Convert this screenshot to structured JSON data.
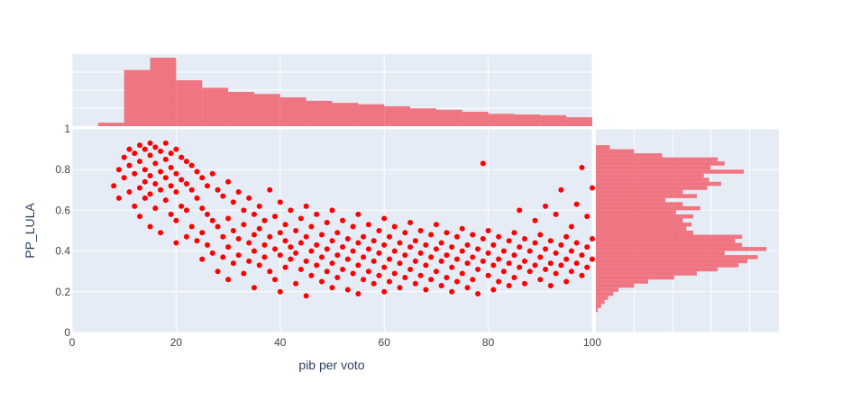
{
  "colors": {
    "background": "#ffffff",
    "plot_background": "#e5ecf6",
    "grid": "#ffffff",
    "scatter_marker": "#ff0000",
    "histogram_fill": "#f0606c",
    "tick_text": "#444444",
    "axis_title_text": "#2a3f5f"
  },
  "chart_data": {
    "type": "scatter",
    "title": "",
    "xlabel": "pib per voto",
    "ylabel": "PP_LULA",
    "xlim": [
      0,
      100
    ],
    "ylim": [
      0,
      1
    ],
    "x_ticks": [
      "0",
      "20",
      "40",
      "60",
      "80",
      "100"
    ],
    "y_ticks": [
      "0",
      "0.2",
      "0.4",
      "0.6",
      "0.8",
      "1"
    ],
    "grid": true,
    "marginal_x": {
      "type": "histogram",
      "bin_width": 5,
      "bin_starts": [
        5,
        10,
        15,
        20,
        25,
        30,
        35,
        40,
        45,
        50,
        55,
        60,
        65,
        70,
        75,
        80,
        85,
        90,
        95
      ],
      "relative_heights": [
        0.05,
        0.82,
        1.0,
        0.67,
        0.56,
        0.5,
        0.47,
        0.42,
        0.37,
        0.34,
        0.32,
        0.29,
        0.26,
        0.24,
        0.21,
        0.18,
        0.17,
        0.16,
        0.13
      ]
    },
    "marginal_y": {
      "type": "histogram",
      "bin_width": 0.02,
      "bin_starts": [
        0.1,
        0.12,
        0.14,
        0.16,
        0.18,
        0.2,
        0.22,
        0.24,
        0.26,
        0.28,
        0.3,
        0.32,
        0.34,
        0.36,
        0.38,
        0.4,
        0.42,
        0.44,
        0.46,
        0.48,
        0.5,
        0.52,
        0.54,
        0.56,
        0.58,
        0.6,
        0.62,
        0.64,
        0.66,
        0.68,
        0.7,
        0.72,
        0.74,
        0.76,
        0.78,
        0.8,
        0.82,
        0.84,
        0.86,
        0.88,
        0.9
      ],
      "relative_heights": [
        0.01,
        0.03,
        0.05,
        0.07,
        0.1,
        0.13,
        0.22,
        0.3,
        0.45,
        0.58,
        0.7,
        0.82,
        0.87,
        0.93,
        0.74,
        0.98,
        0.84,
        0.8,
        0.84,
        0.56,
        0.52,
        0.55,
        0.5,
        0.56,
        0.46,
        0.6,
        0.5,
        0.4,
        0.58,
        0.5,
        0.64,
        0.72,
        0.65,
        0.62,
        0.85,
        0.66,
        0.74,
        0.7,
        0.38,
        0.22,
        0.08
      ]
    },
    "scatter_points": [
      [
        8,
        0.72
      ],
      [
        9,
        0.8
      ],
      [
        9,
        0.66
      ],
      [
        10,
        0.86
      ],
      [
        10,
        0.76
      ],
      [
        11,
        0.9
      ],
      [
        11,
        0.69
      ],
      [
        11,
        0.82
      ],
      [
        12,
        0.88
      ],
      [
        12,
        0.78
      ],
      [
        12,
        0.62
      ],
      [
        13,
        0.92
      ],
      [
        13,
        0.84
      ],
      [
        13,
        0.71
      ],
      [
        13,
        0.57
      ],
      [
        14,
        0.9
      ],
      [
        14,
        0.8
      ],
      [
        14,
        0.74
      ],
      [
        14,
        0.66
      ],
      [
        15,
        0.93
      ],
      [
        15,
        0.87
      ],
      [
        15,
        0.77
      ],
      [
        15,
        0.68
      ],
      [
        15,
        0.52
      ],
      [
        16,
        0.91
      ],
      [
        16,
        0.83
      ],
      [
        16,
        0.73
      ],
      [
        16,
        0.61
      ],
      [
        17,
        0.89
      ],
      [
        17,
        0.79
      ],
      [
        17,
        0.7
      ],
      [
        17,
        0.49
      ],
      [
        18,
        0.93
      ],
      [
        18,
        0.85
      ],
      [
        18,
        0.76
      ],
      [
        18,
        0.65
      ],
      [
        19,
        0.88
      ],
      [
        19,
        0.81
      ],
      [
        19,
        0.72
      ],
      [
        19,
        0.58
      ],
      [
        20,
        0.9
      ],
      [
        20,
        0.78
      ],
      [
        20,
        0.69
      ],
      [
        20,
        0.55
      ],
      [
        20,
        0.44
      ],
      [
        21,
        0.86
      ],
      [
        21,
        0.75
      ],
      [
        21,
        0.62
      ],
      [
        22,
        0.84
      ],
      [
        22,
        0.73
      ],
      [
        22,
        0.6
      ],
      [
        22,
        0.47
      ],
      [
        23,
        0.82
      ],
      [
        23,
        0.7
      ],
      [
        23,
        0.52
      ],
      [
        24,
        0.79
      ],
      [
        24,
        0.66
      ],
      [
        24,
        0.45
      ],
      [
        25,
        0.76
      ],
      [
        25,
        0.61
      ],
      [
        25,
        0.49
      ],
      [
        25,
        0.36
      ],
      [
        26,
        0.72
      ],
      [
        26,
        0.58
      ],
      [
        26,
        0.43
      ],
      [
        27,
        0.78
      ],
      [
        27,
        0.55
      ],
      [
        27,
        0.39
      ],
      [
        28,
        0.7
      ],
      [
        28,
        0.52
      ],
      [
        28,
        0.3
      ],
      [
        29,
        0.67
      ],
      [
        29,
        0.47
      ],
      [
        29,
        0.37
      ],
      [
        30,
        0.74
      ],
      [
        30,
        0.56
      ],
      [
        30,
        0.42
      ],
      [
        30,
        0.26
      ],
      [
        31,
        0.64
      ],
      [
        31,
        0.5
      ],
      [
        31,
        0.34
      ],
      [
        32,
        0.69
      ],
      [
        32,
        0.46
      ],
      [
        32,
        0.38
      ],
      [
        33,
        0.6
      ],
      [
        33,
        0.53
      ],
      [
        33,
        0.29
      ],
      [
        34,
        0.66
      ],
      [
        34,
        0.44
      ],
      [
        34,
        0.35
      ],
      [
        35,
        0.58
      ],
      [
        35,
        0.48
      ],
      [
        35,
        0.4
      ],
      [
        35,
        0.22
      ],
      [
        36,
        0.62
      ],
      [
        36,
        0.51
      ],
      [
        36,
        0.33
      ],
      [
        37,
        0.55
      ],
      [
        37,
        0.43
      ],
      [
        37,
        0.37
      ],
      [
        38,
        0.7
      ],
      [
        38,
        0.47
      ],
      [
        38,
        0.3
      ],
      [
        39,
        0.57
      ],
      [
        39,
        0.41
      ],
      [
        39,
        0.26
      ],
      [
        40,
        0.64
      ],
      [
        40,
        0.49
      ],
      [
        40,
        0.38
      ],
      [
        40,
        0.2
      ],
      [
        41,
        0.53
      ],
      [
        41,
        0.45
      ],
      [
        41,
        0.32
      ],
      [
        42,
        0.6
      ],
      [
        42,
        0.42
      ],
      [
        42,
        0.36
      ],
      [
        43,
        0.5
      ],
      [
        43,
        0.39
      ],
      [
        43,
        0.24
      ],
      [
        44,
        0.56
      ],
      [
        44,
        0.44
      ],
      [
        44,
        0.31
      ],
      [
        45,
        0.62
      ],
      [
        45,
        0.47
      ],
      [
        45,
        0.35
      ],
      [
        45,
        0.18
      ],
      [
        46,
        0.52
      ],
      [
        46,
        0.4
      ],
      [
        46,
        0.28
      ],
      [
        47,
        0.58
      ],
      [
        47,
        0.43
      ],
      [
        47,
        0.33
      ],
      [
        48,
        0.48
      ],
      [
        48,
        0.37
      ],
      [
        48,
        0.25
      ],
      [
        49,
        0.54
      ],
      [
        49,
        0.41
      ],
      [
        49,
        0.3
      ],
      [
        50,
        0.6
      ],
      [
        50,
        0.45
      ],
      [
        50,
        0.34
      ],
      [
        50,
        0.22
      ],
      [
        51,
        0.49
      ],
      [
        51,
        0.38
      ],
      [
        51,
        0.27
      ],
      [
        52,
        0.55
      ],
      [
        52,
        0.42
      ],
      [
        52,
        0.31
      ],
      [
        53,
        0.46
      ],
      [
        53,
        0.36
      ],
      [
        53,
        0.21
      ],
      [
        54,
        0.52
      ],
      [
        54,
        0.4
      ],
      [
        54,
        0.29
      ],
      [
        55,
        0.58
      ],
      [
        55,
        0.44
      ],
      [
        55,
        0.33
      ],
      [
        55,
        0.19
      ],
      [
        56,
        0.47
      ],
      [
        56,
        0.37
      ],
      [
        56,
        0.26
      ],
      [
        57,
        0.53
      ],
      [
        57,
        0.41
      ],
      [
        57,
        0.3
      ],
      [
        58,
        0.45
      ],
      [
        58,
        0.35
      ],
      [
        58,
        0.24
      ],
      [
        59,
        0.5
      ],
      [
        59,
        0.39
      ],
      [
        59,
        0.28
      ],
      [
        60,
        0.56
      ],
      [
        60,
        0.43
      ],
      [
        60,
        0.32
      ],
      [
        60,
        0.2
      ],
      [
        61,
        0.47
      ],
      [
        61,
        0.36
      ],
      [
        61,
        0.25
      ],
      [
        62,
        0.52
      ],
      [
        62,
        0.4
      ],
      [
        62,
        0.29
      ],
      [
        63,
        0.44
      ],
      [
        63,
        0.34
      ],
      [
        63,
        0.22
      ],
      [
        64,
        0.49
      ],
      [
        64,
        0.38
      ],
      [
        64,
        0.27
      ],
      [
        65,
        0.54
      ],
      [
        65,
        0.42
      ],
      [
        65,
        0.31
      ],
      [
        66,
        0.45
      ],
      [
        66,
        0.35
      ],
      [
        66,
        0.24
      ],
      [
        67,
        0.5
      ],
      [
        67,
        0.39
      ],
      [
        67,
        0.28
      ],
      [
        68,
        0.43
      ],
      [
        68,
        0.33
      ],
      [
        68,
        0.21
      ],
      [
        69,
        0.48
      ],
      [
        69,
        0.37
      ],
      [
        69,
        0.26
      ],
      [
        70,
        0.53
      ],
      [
        70,
        0.41
      ],
      [
        70,
        0.3
      ],
      [
        71,
        0.44
      ],
      [
        71,
        0.35
      ],
      [
        71,
        0.23
      ],
      [
        72,
        0.49
      ],
      [
        72,
        0.38
      ],
      [
        72,
        0.27
      ],
      [
        73,
        0.42
      ],
      [
        73,
        0.32
      ],
      [
        73,
        0.2
      ],
      [
        74,
        0.47
      ],
      [
        74,
        0.36
      ],
      [
        74,
        0.25
      ],
      [
        75,
        0.51
      ],
      [
        75,
        0.4
      ],
      [
        75,
        0.29
      ],
      [
        76,
        0.43
      ],
      [
        76,
        0.34
      ],
      [
        76,
        0.22
      ],
      [
        77,
        0.48
      ],
      [
        77,
        0.37
      ],
      [
        77,
        0.26
      ],
      [
        78,
        0.41
      ],
      [
        78,
        0.31
      ],
      [
        78,
        0.19
      ],
      [
        79,
        0.46
      ],
      [
        79,
        0.35
      ],
      [
        79,
        0.83
      ],
      [
        80,
        0.5
      ],
      [
        80,
        0.39
      ],
      [
        80,
        0.28
      ],
      [
        81,
        0.43
      ],
      [
        81,
        0.33
      ],
      [
        81,
        0.21
      ],
      [
        82,
        0.47
      ],
      [
        82,
        0.36
      ],
      [
        82,
        0.25
      ],
      [
        83,
        0.4
      ],
      [
        83,
        0.3
      ],
      [
        84,
        0.45
      ],
      [
        84,
        0.34
      ],
      [
        84,
        0.23
      ],
      [
        85,
        0.49
      ],
      [
        85,
        0.38
      ],
      [
        85,
        0.27
      ],
      [
        86,
        0.42
      ],
      [
        86,
        0.32
      ],
      [
        86,
        0.6
      ],
      [
        87,
        0.46
      ],
      [
        87,
        0.35
      ],
      [
        87,
        0.24
      ],
      [
        88,
        0.4
      ],
      [
        88,
        0.3
      ],
      [
        89,
        0.44
      ],
      [
        89,
        0.33
      ],
      [
        89,
        0.55
      ],
      [
        90,
        0.48
      ],
      [
        90,
        0.37
      ],
      [
        90,
        0.26
      ],
      [
        91,
        0.41
      ],
      [
        91,
        0.31
      ],
      [
        91,
        0.62
      ],
      [
        92,
        0.45
      ],
      [
        92,
        0.34
      ],
      [
        92,
        0.23
      ],
      [
        93,
        0.39
      ],
      [
        93,
        0.29
      ],
      [
        93,
        0.58
      ],
      [
        94,
        0.43
      ],
      [
        94,
        0.33
      ],
      [
        94,
        0.7
      ],
      [
        95,
        0.47
      ],
      [
        95,
        0.36
      ],
      [
        95,
        0.25
      ],
      [
        96,
        0.4
      ],
      [
        96,
        0.3
      ],
      [
        96,
        0.52
      ],
      [
        97,
        0.44
      ],
      [
        97,
        0.34
      ],
      [
        97,
        0.63
      ],
      [
        98,
        0.38
      ],
      [
        98,
        0.28
      ],
      [
        98,
        0.81
      ],
      [
        99,
        0.42
      ],
      [
        99,
        0.32
      ],
      [
        99,
        0.57
      ],
      [
        100,
        0.36
      ],
      [
        100,
        0.46
      ],
      [
        100,
        0.71
      ]
    ]
  }
}
